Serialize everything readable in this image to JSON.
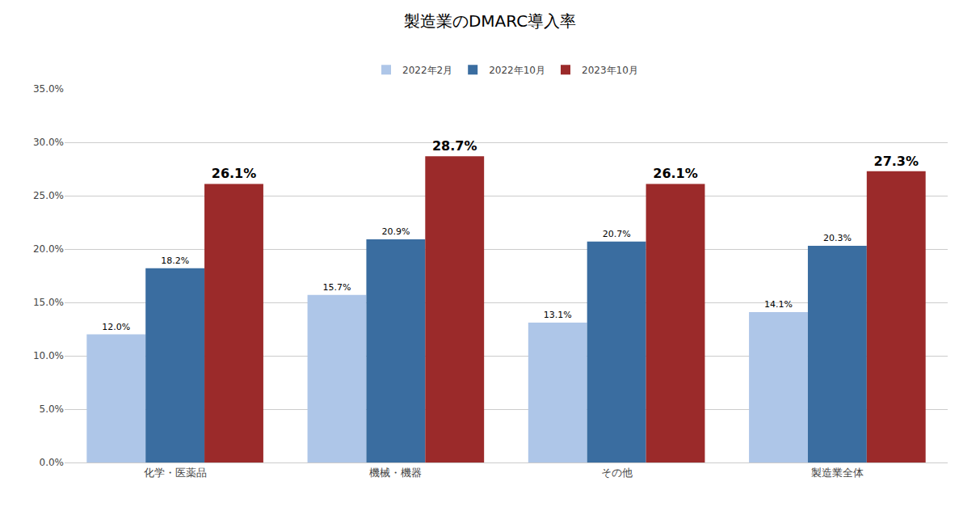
{
  "chart_data": {
    "type": "bar",
    "title": "製造業のDMARC導入率",
    "categories": [
      "化学・医薬品",
      "機械・機器",
      "その他",
      "製造業全体"
    ],
    "series": [
      {
        "name": "2022年2月",
        "color": "#aec6e8",
        "values": [
          12.0,
          15.7,
          13.1,
          14.1
        ],
        "value_labels": [
          "12.0%",
          "15.7%",
          "13.1%",
          "14.1%"
        ]
      },
      {
        "name": "2022年10月",
        "color": "#3a6da0",
        "values": [
          18.2,
          20.9,
          20.7,
          20.3
        ],
        "value_labels": [
          "18.2%",
          "20.9%",
          "20.7%",
          "20.3%"
        ]
      },
      {
        "name": "2023年10月",
        "color": "#9b2a2a",
        "values": [
          26.1,
          28.7,
          26.1,
          27.3
        ],
        "value_labels": [
          "26.1%",
          "28.7%",
          "26.1%",
          "27.3%"
        ]
      }
    ],
    "ylim": [
      0,
      35
    ],
    "yticks": [
      {
        "value": 0,
        "label": "0.0%"
      },
      {
        "value": 5,
        "label": "5.0%"
      },
      {
        "value": 10,
        "label": "10.0%"
      },
      {
        "value": 15,
        "label": "15.0%"
      },
      {
        "value": 20,
        "label": "20.0%"
      },
      {
        "value": 25,
        "label": "25.0%"
      },
      {
        "value": 30,
        "label": "30.0%"
      },
      {
        "value": 35,
        "label": "35.0%"
      }
    ],
    "grid": true,
    "legend": "top",
    "data_labels": true
  }
}
